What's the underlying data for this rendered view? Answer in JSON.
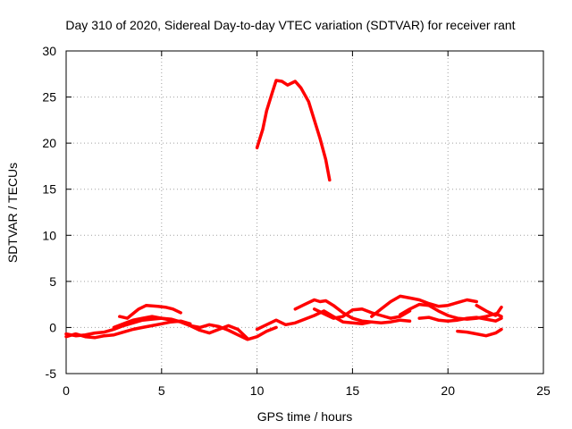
{
  "chart_data": {
    "type": "line",
    "title": "Day 310 of 2020, Sidereal Day-to-day VTEC variation (SDTVAR) for receiver rant",
    "xlabel": "GPS time / hours",
    "ylabel": "SDTVAR / TECUs",
    "xlim": [
      0,
      25
    ],
    "ylim": [
      -5,
      30
    ],
    "xticks": [
      "0",
      "5",
      "10",
      "15",
      "20",
      "25"
    ],
    "yticks": [
      "-5",
      "0",
      "5",
      "10",
      "15",
      "20",
      "25",
      "30"
    ],
    "grid": true,
    "color": "#ff0000",
    "series": [
      {
        "name": "track-1",
        "points": [
          [
            0,
            -0.7
          ],
          [
            0.5,
            -0.9
          ],
          [
            1,
            -0.8
          ],
          [
            1.5,
            -0.6
          ],
          [
            2,
            -0.5
          ],
          [
            2.5,
            -0.2
          ],
          [
            3,
            0.2
          ],
          [
            3.5,
            0.5
          ],
          [
            4,
            0.8
          ],
          [
            4.5,
            0.9
          ],
          [
            5,
            1.0
          ],
          [
            5.5,
            0.9
          ],
          [
            6,
            0.6
          ],
          [
            6.5,
            0.2
          ],
          [
            7,
            0.0
          ],
          [
            7.5,
            0.3
          ],
          [
            8,
            0.1
          ],
          [
            8.5,
            -0.3
          ],
          [
            9,
            -0.8
          ],
          [
            9.5,
            -1.3
          ],
          [
            10,
            -1.0
          ],
          [
            10.5,
            -0.4
          ],
          [
            11,
            0.0
          ]
        ]
      },
      {
        "name": "track-2",
        "points": [
          [
            0,
            -1.0
          ],
          [
            0.5,
            -0.7
          ],
          [
            1,
            -1.0
          ],
          [
            1.5,
            -1.1
          ],
          [
            2,
            -0.9
          ],
          [
            2.5,
            -0.8
          ],
          [
            3,
            -0.5
          ],
          [
            3.5,
            -0.2
          ],
          [
            4,
            0.0
          ],
          [
            4.5,
            0.2
          ],
          [
            5,
            0.4
          ],
          [
            5.5,
            0.6
          ],
          [
            6,
            0.7
          ],
          [
            6.5,
            0.4
          ]
        ]
      },
      {
        "name": "track-3",
        "points": [
          [
            2.5,
            0.0
          ],
          [
            3,
            0.4
          ],
          [
            3.5,
            0.8
          ],
          [
            4,
            1.0
          ],
          [
            4.5,
            1.2
          ],
          [
            5,
            1.0
          ],
          [
            5.5,
            0.8
          ],
          [
            6,
            0.6
          ],
          [
            6.5,
            0.2
          ],
          [
            7,
            -0.3
          ],
          [
            7.5,
            -0.6
          ],
          [
            8,
            -0.2
          ],
          [
            8.5,
            0.2
          ],
          [
            9,
            -0.2
          ],
          [
            9.5,
            -1.2
          ]
        ]
      },
      {
        "name": "track-4",
        "points": [
          [
            2.8,
            1.2
          ],
          [
            3.2,
            1.0
          ],
          [
            3.8,
            2.0
          ],
          [
            4.2,
            2.4
          ],
          [
            4.8,
            2.3
          ],
          [
            5.2,
            2.2
          ],
          [
            5.6,
            2.0
          ],
          [
            6.0,
            1.6
          ]
        ]
      },
      {
        "name": "track-5",
        "points": [
          [
            10,
            19.5
          ],
          [
            10.3,
            21.5
          ],
          [
            10.5,
            23.5
          ],
          [
            10.8,
            25.5
          ],
          [
            11.0,
            26.8
          ],
          [
            11.3,
            26.7
          ],
          [
            11.6,
            26.3
          ],
          [
            12.0,
            26.7
          ],
          [
            12.3,
            26.0
          ],
          [
            12.7,
            24.5
          ],
          [
            13.0,
            22.5
          ],
          [
            13.3,
            20.5
          ],
          [
            13.6,
            18.2
          ],
          [
            13.8,
            16.0
          ]
        ]
      },
      {
        "name": "track-6",
        "points": [
          [
            10,
            -0.2
          ],
          [
            10.5,
            0.3
          ],
          [
            11,
            0.8
          ],
          [
            11.5,
            0.3
          ],
          [
            12,
            0.5
          ],
          [
            12.5,
            0.9
          ],
          [
            13,
            1.3
          ],
          [
            13.5,
            1.8
          ],
          [
            14,
            1.2
          ],
          [
            14.5,
            0.6
          ],
          [
            15,
            0.5
          ],
          [
            15.5,
            0.4
          ],
          [
            16,
            0.6
          ],
          [
            16.5,
            0.5
          ],
          [
            17,
            0.6
          ],
          [
            17.5,
            0.8
          ],
          [
            18,
            0.7
          ]
        ]
      },
      {
        "name": "track-7",
        "points": [
          [
            12,
            2.0
          ],
          [
            12.5,
            2.5
          ],
          [
            13,
            3.0
          ],
          [
            13.3,
            2.8
          ],
          [
            13.6,
            2.9
          ],
          [
            14,
            2.4
          ],
          [
            14.5,
            1.6
          ],
          [
            15,
            1.0
          ],
          [
            15.5,
            0.7
          ],
          [
            16,
            0.6
          ]
        ]
      },
      {
        "name": "track-8",
        "points": [
          [
            13,
            2.0
          ],
          [
            13.5,
            1.5
          ],
          [
            14,
            1.0
          ],
          [
            14.5,
            1.2
          ],
          [
            15,
            1.9
          ],
          [
            15.5,
            2.0
          ],
          [
            16,
            1.6
          ],
          [
            16.5,
            1.3
          ],
          [
            17,
            1.0
          ],
          [
            17.5,
            1.2
          ],
          [
            18,
            1.8
          ]
        ]
      },
      {
        "name": "track-9",
        "points": [
          [
            16,
            1.2
          ],
          [
            16.5,
            2.0
          ],
          [
            17,
            2.8
          ],
          [
            17.5,
            3.4
          ],
          [
            18,
            3.2
          ],
          [
            18.5,
            3.0
          ],
          [
            19,
            2.6
          ],
          [
            19.5,
            2.3
          ],
          [
            20,
            2.4
          ],
          [
            20.5,
            2.7
          ],
          [
            21,
            3.0
          ],
          [
            21.5,
            2.8
          ]
        ]
      },
      {
        "name": "track-10",
        "points": [
          [
            17.5,
            1.4
          ],
          [
            18,
            2.0
          ],
          [
            18.5,
            2.5
          ],
          [
            19,
            2.4
          ],
          [
            19.5,
            1.8
          ],
          [
            20,
            1.3
          ],
          [
            20.5,
            1.0
          ],
          [
            21,
            0.9
          ],
          [
            21.5,
            1.0
          ],
          [
            22,
            1.2
          ],
          [
            22.5,
            1.5
          ],
          [
            22.8,
            1.2
          ]
        ]
      },
      {
        "name": "track-11",
        "points": [
          [
            18.5,
            1.0
          ],
          [
            19,
            1.1
          ],
          [
            19.5,
            0.8
          ],
          [
            20,
            0.7
          ],
          [
            20.5,
            0.8
          ],
          [
            21,
            1.0
          ],
          [
            21.5,
            1.1
          ],
          [
            22,
            0.9
          ],
          [
            22.5,
            0.7
          ],
          [
            22.8,
            1.0
          ]
        ]
      },
      {
        "name": "track-12",
        "points": [
          [
            20.5,
            -0.4
          ],
          [
            21,
            -0.5
          ],
          [
            21.5,
            -0.7
          ],
          [
            22,
            -0.9
          ],
          [
            22.5,
            -0.6
          ],
          [
            22.8,
            -0.2
          ]
        ]
      },
      {
        "name": "track-13",
        "points": [
          [
            21.5,
            2.4
          ],
          [
            22,
            1.8
          ],
          [
            22.5,
            1.3
          ],
          [
            22.8,
            2.2
          ]
        ]
      }
    ]
  }
}
